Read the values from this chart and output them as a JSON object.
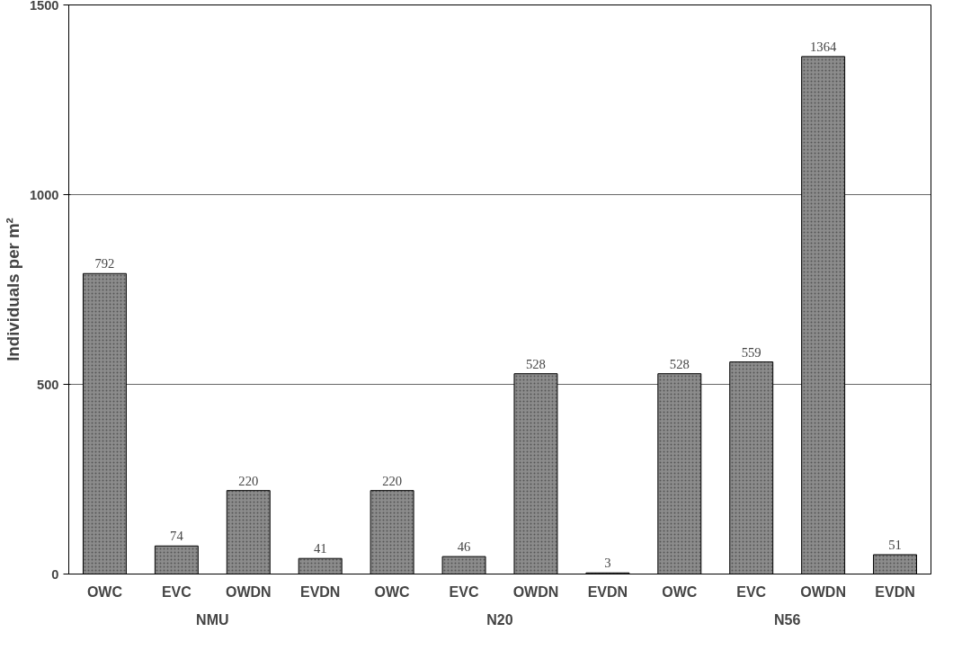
{
  "chart_data": {
    "type": "bar",
    "ylabel": "Individuals per m²",
    "categories": [
      "OWC",
      "EVC",
      "OWDN",
      "EVDN",
      "OWC",
      "EVC",
      "OWDN",
      "EVDN",
      "OWC",
      "EVC",
      "OWDN",
      "EVDN"
    ],
    "values": [
      792,
      74,
      220,
      41,
      220,
      46,
      528,
      3,
      528,
      559,
      1364,
      51
    ],
    "color": "#8c8c8c",
    "ylim": [
      0,
      1500
    ],
    "yticks": [
      0,
      500,
      1000,
      1500
    ],
    "grid": "y",
    "data_labels": true,
    "annotations": [
      "NMU",
      "N20",
      "N56"
    ]
  }
}
